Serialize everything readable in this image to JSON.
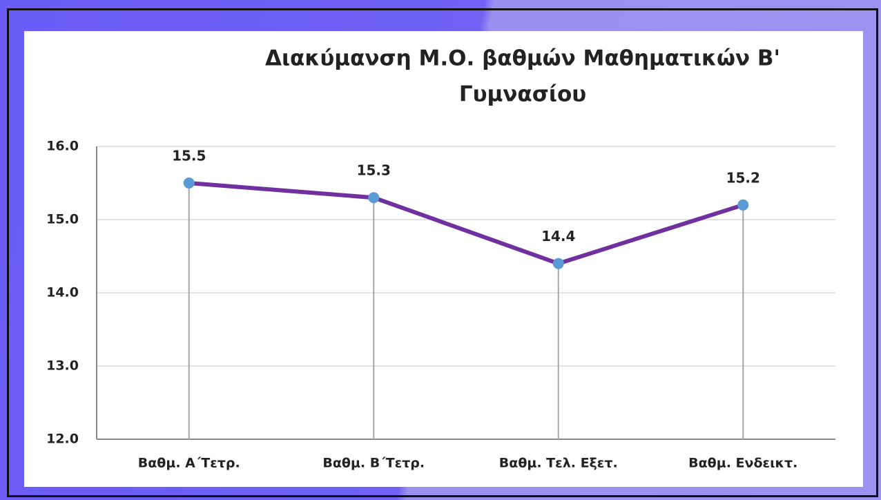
{
  "chart_data": {
    "type": "line",
    "title": [
      "Διακύμανση Μ.Ο. βαθμών Μαθηματικών Β'",
      "Γυμνασίου"
    ],
    "categories": [
      "Βαθμ. Α΄Τετρ.",
      "Βαθμ. Β΄Τετρ.",
      "Βαθμ. Τελ. Εξετ.",
      "Βαθμ. Ενδεικτ."
    ],
    "values": [
      15.5,
      15.3,
      14.4,
      15.2
    ],
    "color": "#7030a0",
    "marker_color": "#5b9bd5",
    "ylim": [
      12,
      16
    ],
    "yticks": [
      {
        "value": 12,
        "label": "12.0"
      },
      {
        "value": 13,
        "label": "13.0"
      },
      {
        "value": 14,
        "label": "14.0"
      },
      {
        "value": 15,
        "label": "15.0"
      },
      {
        "value": 16,
        "label": "16.0"
      }
    ],
    "grid": true,
    "drop_lines": true
  }
}
